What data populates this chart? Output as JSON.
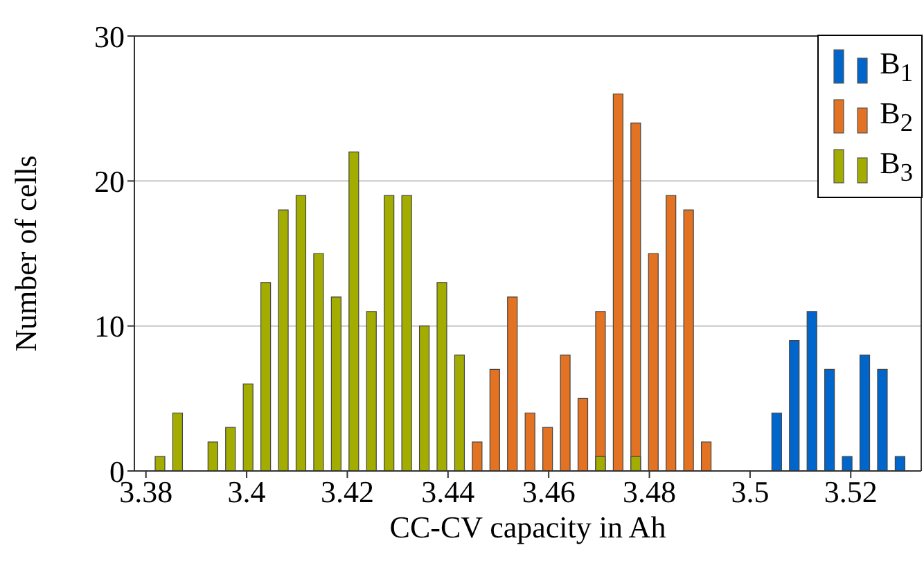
{
  "chart_data": {
    "type": "histogram",
    "xlabel": "CC-CV capacity in Ah",
    "ylabel": "Number of cells",
    "bins": [
      3.381,
      3.3845,
      3.388,
      3.3915,
      3.395,
      3.3985,
      3.402,
      3.4055,
      3.409,
      3.4125,
      3.416,
      3.4195,
      3.423,
      3.4265,
      3.43,
      3.4335,
      3.437,
      3.4405,
      3.444,
      3.4475,
      3.451,
      3.4545,
      3.458,
      3.4615,
      3.465,
      3.4685,
      3.472,
      3.4755,
      3.479,
      3.4825,
      3.486,
      3.4895,
      3.493,
      3.4965,
      3.5,
      3.5035,
      3.507,
      3.5105,
      3.514,
      3.5175,
      3.521,
      3.5245,
      3.528,
      3.5315
    ],
    "series": [
      {
        "name": "B$_{1}$",
        "color": "#0066cc",
        "values": [
          null,
          null,
          null,
          null,
          null,
          null,
          null,
          null,
          null,
          null,
          null,
          null,
          null,
          null,
          null,
          null,
          null,
          null,
          null,
          null,
          null,
          null,
          null,
          null,
          null,
          null,
          null,
          null,
          null,
          null,
          null,
          null,
          null,
          null,
          null,
          4,
          9,
          11,
          7,
          1,
          8,
          7,
          1
        ]
      },
      {
        "name": "B$_{2}$",
        "color": "#e37222",
        "values": [
          null,
          null,
          null,
          null,
          null,
          null,
          null,
          null,
          null,
          null,
          null,
          null,
          null,
          null,
          null,
          null,
          null,
          null,
          2,
          7,
          12,
          4,
          3,
          8,
          5,
          11,
          26,
          24,
          15,
          19,
          18,
          2,
          null,
          null,
          null,
          null,
          null,
          null,
          null,
          null,
          null,
          null,
          null
        ]
      },
      {
        "name": "B$_{3}$",
        "color": "#a2ad00",
        "values": [
          1,
          4,
          0,
          2,
          3,
          6,
          13,
          18,
          19,
          15,
          12,
          22,
          11,
          19,
          19,
          10,
          13,
          8,
          null,
          null,
          null,
          null,
          null,
          null,
          null,
          1,
          null,
          1,
          null,
          null,
          null,
          null,
          null,
          null,
          null,
          null,
          null,
          null,
          null,
          null,
          null,
          null,
          null
        ]
      }
    ],
    "xlim": [
      3.3777,
      3.534
    ],
    "xticks": [
      3.38,
      3.4,
      3.42,
      3.44,
      3.46,
      3.48,
      3.5,
      3.52
    ],
    "ylim": [
      0,
      30
    ],
    "yticks": [
      0,
      10,
      20,
      30
    ],
    "grid": "y",
    "legend": "top right"
  }
}
